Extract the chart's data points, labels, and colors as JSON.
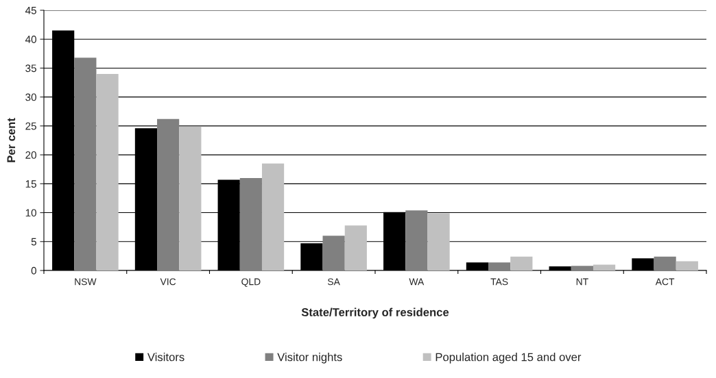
{
  "chart_data": {
    "type": "bar",
    "xlabel": "State/Territory of residence",
    "ylabel": "Per cent",
    "categories": [
      "NSW",
      "VIC",
      "QLD",
      "SA",
      "WA",
      "TAS",
      "NT",
      "ACT"
    ],
    "series": [
      {
        "name": "Visitors",
        "color": "#000000",
        "values": [
          41.5,
          24.6,
          15.7,
          4.7,
          10.1,
          1.4,
          0.7,
          2.1
        ]
      },
      {
        "name": "Visitor nights",
        "color": "#808080",
        "values": [
          36.8,
          26.2,
          16.0,
          6.0,
          10.4,
          1.4,
          0.8,
          2.4
        ]
      },
      {
        "name": "Population aged 15 and over",
        "color": "#c0c0c0",
        "values": [
          34.0,
          24.9,
          18.5,
          7.8,
          9.9,
          2.4,
          1.0,
          1.6
        ]
      }
    ],
    "ylim": [
      0,
      45
    ],
    "yticks": [
      0,
      5,
      10,
      15,
      20,
      25,
      30,
      35,
      40,
      45
    ],
    "grid": "y",
    "legend": "bottom"
  }
}
